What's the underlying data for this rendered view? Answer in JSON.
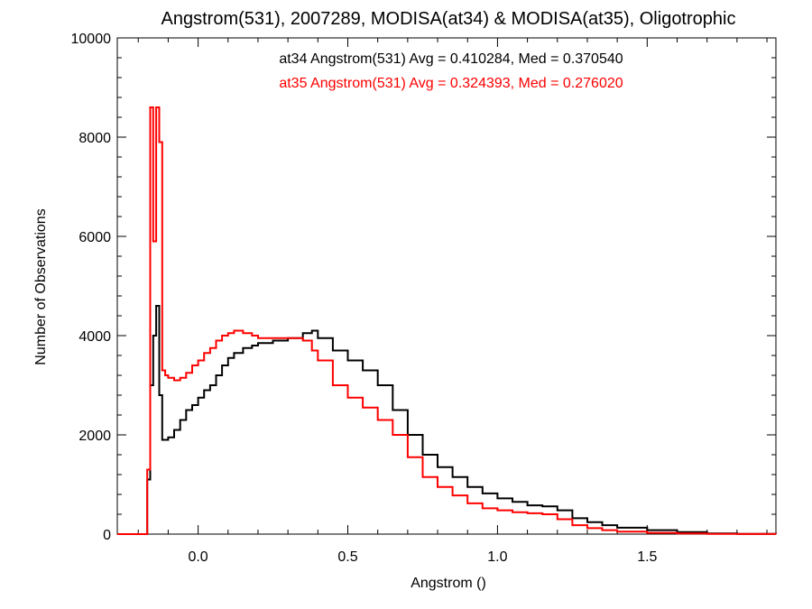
{
  "chart_data": {
    "type": "line",
    "title": "Angstrom(531), 2007289, MODISA(at34) & MODISA(at35), Oligotrophic",
    "xlabel": "Angstrom ()",
    "ylabel": "Number of Observations",
    "xlim": [
      -0.27,
      1.93
    ],
    "ylim": [
      0,
      10000
    ],
    "x_ticks": [
      0.0,
      0.5,
      1.0,
      1.5
    ],
    "x_tick_labels": [
      "0.0",
      "0.5",
      "1.0",
      "1.5"
    ],
    "y_ticks": [
      0,
      2000,
      4000,
      6000,
      8000,
      10000
    ],
    "y_tick_labels": [
      "0",
      "2000",
      "4000",
      "6000",
      "8000",
      "10000"
    ],
    "grid": false,
    "legend_position": "top-center",
    "series": [
      {
        "name": "at34",
        "legend_text": "at34 Angstrom(531) Avg = 0.410284, Med = 0.370540",
        "color": "#000000",
        "x": [
          -0.27,
          -0.18,
          -0.17,
          -0.16,
          -0.15,
          -0.14,
          -0.13,
          -0.12,
          -0.11,
          -0.1,
          -0.08,
          -0.06,
          -0.04,
          -0.02,
          0.0,
          0.02,
          0.04,
          0.06,
          0.08,
          0.1,
          0.12,
          0.15,
          0.18,
          0.2,
          0.25,
          0.3,
          0.35,
          0.38,
          0.4,
          0.45,
          0.5,
          0.55,
          0.6,
          0.65,
          0.7,
          0.75,
          0.8,
          0.85,
          0.9,
          0.95,
          1.0,
          1.05,
          1.1,
          1.15,
          1.2,
          1.25,
          1.3,
          1.35,
          1.4,
          1.5,
          1.6,
          1.7,
          1.8,
          1.93
        ],
        "y": [
          0,
          0,
          1100,
          3000,
          4000,
          4600,
          2800,
          1900,
          1900,
          1950,
          2100,
          2300,
          2500,
          2600,
          2750,
          2900,
          3000,
          3200,
          3400,
          3550,
          3650,
          3750,
          3800,
          3850,
          3900,
          3950,
          4050,
          4100,
          3950,
          3700,
          3500,
          3300,
          3000,
          2500,
          2000,
          1600,
          1350,
          1150,
          950,
          820,
          720,
          650,
          580,
          560,
          480,
          320,
          240,
          180,
          130,
          80,
          40,
          15,
          5,
          0
        ]
      },
      {
        "name": "at35",
        "legend_text": "at35 Angstrom(531) Avg = 0.324393, Med = 0.276020",
        "color": "#ff0000",
        "x": [
          -0.27,
          -0.18,
          -0.17,
          -0.16,
          -0.15,
          -0.14,
          -0.13,
          -0.12,
          -0.11,
          -0.1,
          -0.08,
          -0.06,
          -0.04,
          -0.02,
          0.0,
          0.02,
          0.04,
          0.06,
          0.08,
          0.1,
          0.12,
          0.15,
          0.18,
          0.2,
          0.25,
          0.3,
          0.35,
          0.38,
          0.4,
          0.45,
          0.5,
          0.55,
          0.6,
          0.65,
          0.7,
          0.75,
          0.8,
          0.85,
          0.9,
          0.95,
          1.0,
          1.05,
          1.1,
          1.15,
          1.2,
          1.25,
          1.3,
          1.35,
          1.4,
          1.5,
          1.6,
          1.7,
          1.8,
          1.93
        ],
        "y": [
          0,
          0,
          1300,
          8600,
          5900,
          8600,
          7900,
          3300,
          3200,
          3150,
          3100,
          3150,
          3250,
          3400,
          3500,
          3650,
          3750,
          3900,
          4000,
          4050,
          4100,
          4050,
          4000,
          3950,
          3950,
          3950,
          3900,
          3700,
          3500,
          3000,
          2750,
          2550,
          2300,
          2000,
          1550,
          1150,
          950,
          780,
          620,
          520,
          480,
          440,
          420,
          400,
          300,
          180,
          120,
          80,
          50,
          25,
          12,
          5,
          2,
          0
        ]
      }
    ]
  }
}
